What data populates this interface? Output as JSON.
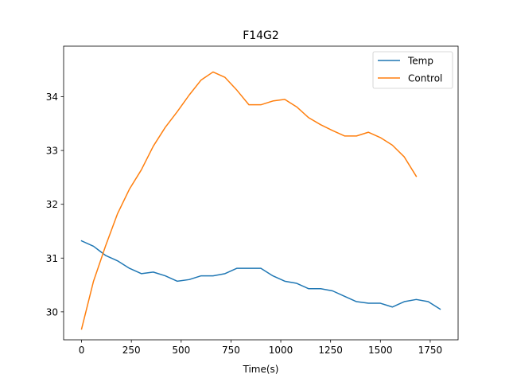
{
  "chart_data": {
    "type": "line",
    "title": "F14G2",
    "xlabel": "Time(s)",
    "ylabel": "",
    "xlim": [
      -90,
      1890
    ],
    "ylim": [
      29.48,
      34.94
    ],
    "xticks": [
      0,
      250,
      500,
      750,
      1000,
      1250,
      1500,
      1750
    ],
    "yticks": [
      30,
      31,
      32,
      33,
      34
    ],
    "grid": false,
    "legend_position": "top-right",
    "series": [
      {
        "name": "Temp",
        "color": "#1f77b4",
        "x": [
          0,
          60,
          120,
          180,
          240,
          300,
          360,
          420,
          480,
          540,
          600,
          660,
          720,
          780,
          840,
          900,
          960,
          1020,
          1080,
          1140,
          1200,
          1260,
          1320,
          1380,
          1440,
          1500,
          1560,
          1620,
          1680,
          1740,
          1800
        ],
        "values": [
          31.32,
          31.22,
          31.05,
          30.95,
          30.81,
          30.71,
          30.74,
          30.67,
          30.57,
          30.6,
          30.67,
          30.67,
          30.71,
          30.81,
          30.81,
          30.81,
          30.67,
          30.57,
          30.53,
          30.43,
          30.43,
          30.39,
          30.29,
          30.19,
          30.16,
          30.16,
          30.09,
          30.19,
          30.23,
          30.19,
          30.05
        ]
      },
      {
        "name": "Control",
        "color": "#ff7f0e",
        "x": [
          0,
          60,
          120,
          180,
          240,
          300,
          360,
          420,
          480,
          540,
          600,
          660,
          720,
          780,
          840,
          900,
          960,
          1020,
          1080,
          1140,
          1200,
          1260,
          1320,
          1380,
          1440,
          1500,
          1560,
          1620,
          1680
        ],
        "values": [
          29.68,
          30.57,
          31.22,
          31.82,
          32.28,
          32.64,
          33.08,
          33.43,
          33.72,
          34.03,
          34.31,
          34.46,
          34.36,
          34.12,
          33.85,
          33.85,
          33.92,
          33.95,
          33.81,
          33.61,
          33.48,
          33.37,
          33.27,
          33.27,
          33.34,
          33.24,
          33.1,
          32.88,
          32.52
        ]
      }
    ]
  }
}
